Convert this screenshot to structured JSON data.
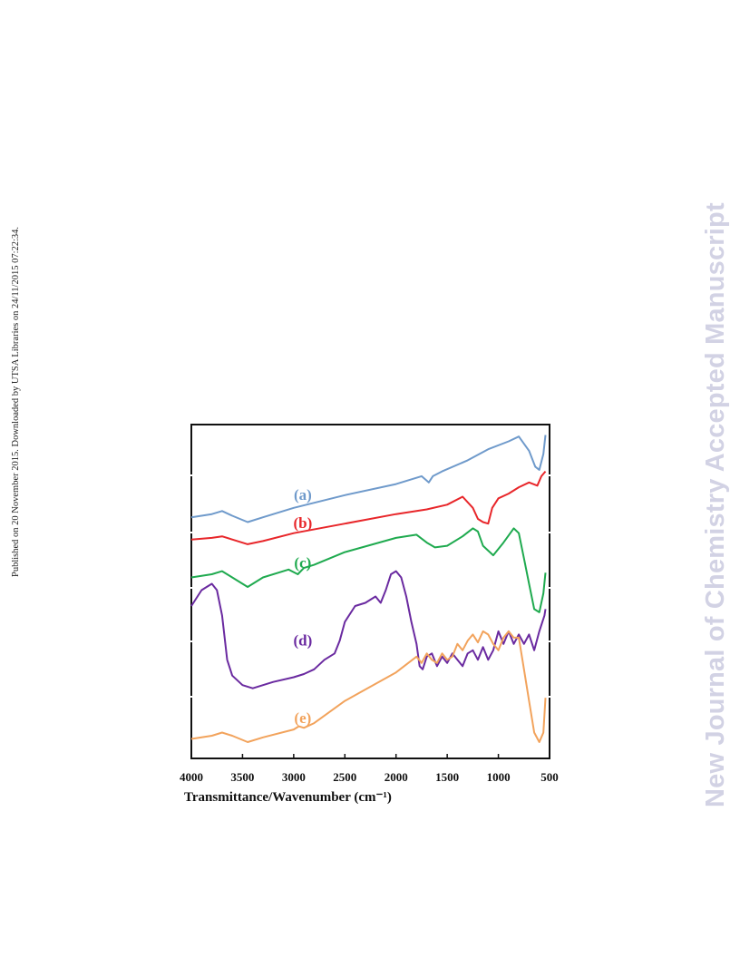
{
  "page": {
    "side_note": "Published on 20 November 2015. Downloaded by UTSA Libraries on 24/11/2015 07:22:34.",
    "watermark": "New Journal of Chemistry Accepted Manuscript"
  },
  "colors": {
    "a": "#6f9acb",
    "b": "#e8262a",
    "c": "#1faa4f",
    "d": "#6a2aa0",
    "e": "#f2a35c"
  },
  "chart_data": {
    "type": "line",
    "title": "",
    "xlabel": "Transmittance/Wavenumber (cm⁻¹)",
    "ylabel": "",
    "xlim": [
      4000,
      500
    ],
    "x_reversed": true,
    "xticks": [
      "4000",
      "3500",
      "3000",
      "2500",
      "2000",
      "1500",
      "1000",
      "500"
    ],
    "ylim": [
      0,
      100
    ],
    "y_axis_ticks_labeled": false,
    "grid": false,
    "series": [
      {
        "name": "(a)",
        "x": [
          4000,
          3800,
          3700,
          3600,
          3450,
          3300,
          3000,
          2500,
          2000,
          1750,
          1680,
          1640,
          1550,
          1300,
          1100,
          900,
          800,
          700,
          640,
          600,
          560,
          540
        ],
        "values": [
          73,
          74,
          75,
          73.5,
          71.5,
          73,
          76,
          80,
          83.5,
          86,
          84,
          86,
          87.5,
          91,
          94.5,
          97,
          98.5,
          94,
          89,
          88,
          93,
          99
        ]
      },
      {
        "name": "(b)",
        "x": [
          4000,
          3800,
          3700,
          3600,
          3450,
          3300,
          3000,
          2500,
          2000,
          1700,
          1500,
          1350,
          1250,
          1200,
          1150,
          1100,
          1060,
          1000,
          900,
          800,
          700,
          620,
          580,
          540
        ],
        "values": [
          66,
          66.5,
          67,
          66,
          64.5,
          65.5,
          68,
          71,
          74,
          75.5,
          77,
          79.5,
          76,
          72.5,
          71.5,
          71,
          76,
          79,
          80.5,
          82.5,
          84,
          83,
          86,
          87.5
        ]
      },
      {
        "name": "(c)",
        "x": [
          4000,
          3800,
          3700,
          3600,
          3450,
          3300,
          3050,
          2960,
          2900,
          2800,
          2500,
          2000,
          1800,
          1700,
          1620,
          1500,
          1350,
          1250,
          1200,
          1150,
          1050,
          950,
          850,
          800,
          750,
          700,
          650,
          600,
          560,
          540
        ],
        "values": [
          54,
          55,
          56,
          54,
          51,
          54,
          56.5,
          55,
          57,
          58,
          62,
          66.5,
          67.5,
          65,
          63.5,
          64,
          67,
          69.5,
          68.5,
          64,
          61,
          65,
          69.5,
          68,
          60,
          52,
          44,
          43,
          49,
          55.5
        ]
      },
      {
        "name": "(d)",
        "x": [
          4000,
          3900,
          3850,
          3800,
          3750,
          3700,
          3650,
          3600,
          3500,
          3400,
          3200,
          3000,
          2900,
          2800,
          2700,
          2600,
          2550,
          2500,
          2400,
          2300,
          2200,
          2150,
          2100,
          2050,
          2000,
          1950,
          1900,
          1850,
          1800,
          1770,
          1740,
          1700,
          1650,
          1600,
          1550,
          1500,
          1450,
          1400,
          1350,
          1300,
          1250,
          1200,
          1150,
          1100,
          1050,
          1000,
          950,
          900,
          850,
          800,
          750,
          700,
          650,
          600,
          550,
          540
        ],
        "values": [
          45,
          50,
          51,
          52,
          50,
          42,
          28,
          23,
          20,
          19,
          21,
          22.5,
          23.5,
          25,
          28,
          30,
          34,
          40,
          45,
          46,
          48,
          46,
          50,
          55,
          56,
          54,
          48,
          40,
          33,
          26,
          25,
          29,
          30,
          26,
          29,
          27,
          30,
          28,
          26,
          30,
          31,
          28,
          32,
          28,
          31,
          37,
          33,
          37,
          33,
          36,
          33,
          36,
          31,
          37,
          42,
          44
        ]
      },
      {
        "name": "(e)",
        "x": [
          4000,
          3800,
          3700,
          3600,
          3450,
          3300,
          3000,
          2950,
          2900,
          2800,
          2500,
          2000,
          1800,
          1750,
          1700,
          1650,
          1600,
          1550,
          1500,
          1450,
          1400,
          1350,
          1300,
          1250,
          1200,
          1150,
          1100,
          1050,
          1000,
          950,
          900,
          850,
          800,
          750,
          700,
          650,
          600,
          560,
          540
        ],
        "values": [
          3,
          4,
          5,
          4,
          2,
          3.5,
          6,
          7,
          6.5,
          8,
          15,
          24,
          29,
          27,
          30,
          28,
          27,
          30,
          28,
          29,
          33,
          31,
          34,
          36,
          33.5,
          37,
          36,
          33,
          31,
          35,
          37,
          35,
          35,
          25,
          15,
          5,
          2,
          5,
          16
        ]
      }
    ],
    "labels": [
      {
        "series": "(a)",
        "text": "(a)",
        "x": 3000,
        "y": 80
      },
      {
        "series": "(b)",
        "text": "(b)",
        "x": 3000,
        "y": 71
      },
      {
        "series": "(c)",
        "text": "(c)",
        "x": 3000,
        "y": 58.5
      },
      {
        "series": "(d)",
        "text": "(d)",
        "x": 3000,
        "y": 34
      },
      {
        "series": "(e)",
        "text": "(e)",
        "x": 3000,
        "y": 9.5
      }
    ]
  }
}
